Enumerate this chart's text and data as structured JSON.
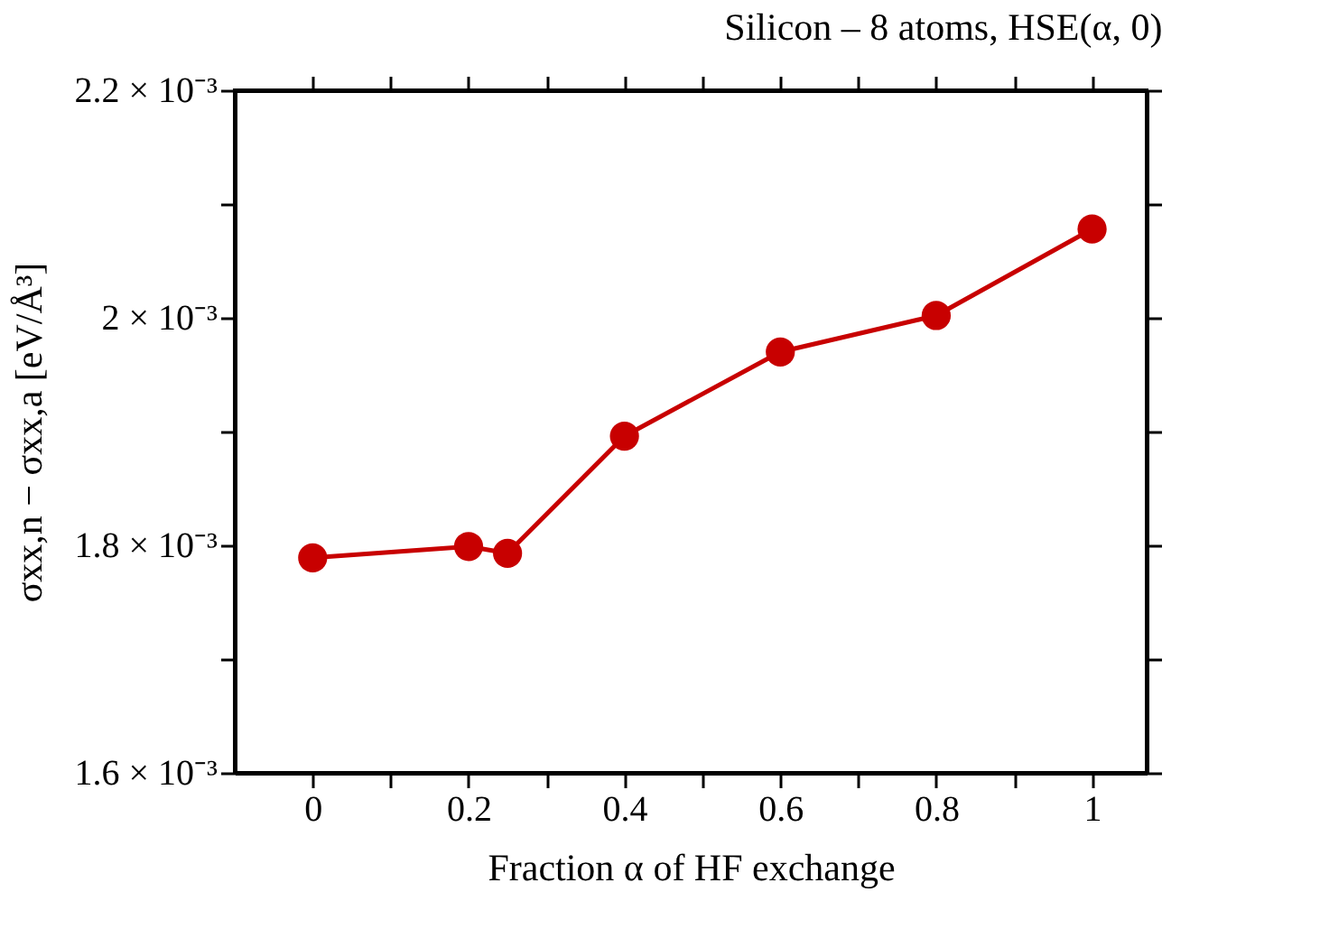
{
  "chart_data": {
    "type": "line",
    "title": "Silicon – 8 atoms, HSE(α, 0)",
    "xlabel": "Fraction α of HF exchange",
    "ylabel": "σxx,n − σxx,a [eV/Å³]",
    "x": [
      0,
      0.2,
      0.25,
      0.4,
      0.6,
      0.8,
      1
    ],
    "series": [
      {
        "color": "#c80000",
        "values": [
          0.001789,
          0.001799,
          0.001793,
          0.001896,
          0.00197,
          0.002002,
          0.002078
        ]
      }
    ],
    "xlim": [
      -0.1,
      1.07
    ],
    "xticks": [
      0,
      {
        "value": 0.1,
        "label": null
      },
      0.2,
      {
        "value": 0.3,
        "label": null
      },
      0.4,
      {
        "value": 0.5,
        "label": null
      },
      0.6,
      {
        "value": 0.7,
        "label": null
      },
      0.8,
      {
        "value": 0.9,
        "label": null
      },
      1
    ],
    "ylim": [
      0.0016,
      0.0022
    ],
    "yticks": [
      {
        "value": 0.0016,
        "label": "1.6 × 10⁻³"
      },
      {
        "value": 0.0017,
        "label": null
      },
      {
        "value": 0.0018,
        "label": "1.8 × 10⁻³"
      },
      {
        "value": 0.0019,
        "label": null
      },
      {
        "value": 0.002,
        "label": "2 × 10⁻³"
      },
      {
        "value": 0.0021,
        "label": null
      },
      {
        "value": 0.0022,
        "label": "2.2 × 10⁻³"
      }
    ],
    "marker": "circle",
    "line_style": "solid",
    "grid": false
  }
}
